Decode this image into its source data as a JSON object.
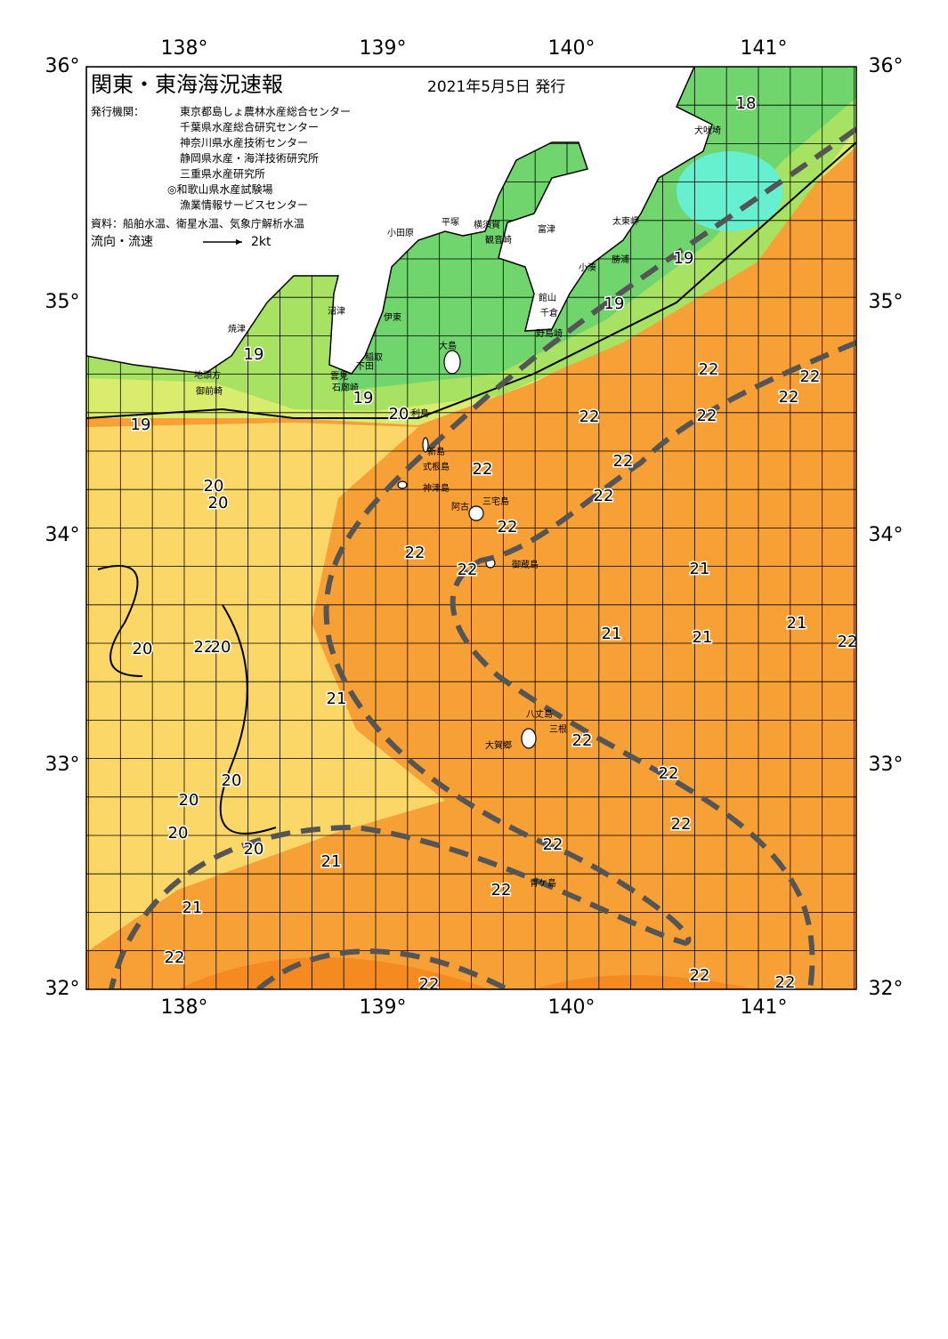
{
  "header": {
    "title": "関東・東海海況速報",
    "date": "2021年5月5日 発行",
    "publisher_label": "発行機関：",
    "publishers": [
      "東京都島しょ農林水産総合センター",
      "千葉県水産総合研究センター",
      "神奈川県水産技術センター",
      "静岡県水産・海洋技術研究所",
      "三重県水産研究所",
      "◎和歌山県水産試験場",
      "漁業情報サービスセンター"
    ],
    "source": "資料：船舶水温、衛星水温、気象庁解析水温",
    "legend_label": "流向・流速",
    "legend_speed": "2kt"
  },
  "axes": {
    "lon": [
      "138°",
      "139°",
      "140°",
      "141°"
    ],
    "lat": [
      "36°",
      "35°",
      "34°",
      "33°",
      "32°"
    ]
  },
  "places": [
    "犬吠埼",
    "太東岬",
    "勝浦",
    "小湊",
    "富津",
    "横須賀",
    "観音崎",
    "平塚",
    "小田原",
    "館山",
    "千倉",
    "野島崎",
    "沼津",
    "伊東",
    "大島",
    "稲取",
    "下田",
    "雲見",
    "石廊崎",
    "焼津",
    "地頭方",
    "御前崎",
    "利島",
    "新島",
    "式根島",
    "神津島",
    "三宅島",
    "阿古",
    "御蔵島",
    "八丈島",
    "三根",
    "大賀郷",
    "青ケ島"
  ],
  "temperatures": [
    "18",
    "19",
    "19",
    "19",
    "19",
    "19",
    "20",
    "22",
    "22",
    "22",
    "22",
    "22",
    "22",
    "22",
    "22",
    "20",
    "20",
    "22",
    "22",
    "22",
    "21",
    "21",
    "22",
    "21",
    "21",
    "20",
    "22",
    "20",
    "21",
    "22",
    "22",
    "20",
    "20",
    "20",
    "20",
    "22",
    "22",
    "21",
    "22",
    "21",
    "22",
    "22",
    "22",
    "22"
  ]
}
